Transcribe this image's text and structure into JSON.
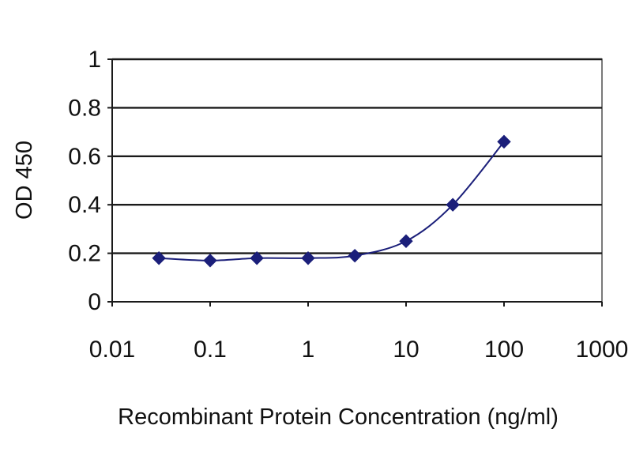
{
  "chart_data": {
    "type": "line",
    "title": "",
    "xlabel": "Recombinant Protein Concentration (ng/ml)",
    "ylabel": "OD 450",
    "x_scale": "log",
    "xlim": [
      0.01,
      1000
    ],
    "ylim": [
      0,
      1
    ],
    "x_ticks": [
      "0.01",
      "0.1",
      "1",
      "10",
      "100",
      "1000"
    ],
    "y_ticks": [
      "0",
      "0.2",
      "0.4",
      "0.6",
      "0.8",
      "1"
    ],
    "grid": "horizontal",
    "legend": "none",
    "series": [
      {
        "color": "#1b1f7a",
        "marker": "diamond",
        "x": [
          0.03,
          0.1,
          0.3,
          1,
          3,
          10,
          30,
          100
        ],
        "y": [
          0.18,
          0.17,
          0.18,
          0.18,
          0.19,
          0.25,
          0.4,
          0.66
        ]
      }
    ]
  }
}
